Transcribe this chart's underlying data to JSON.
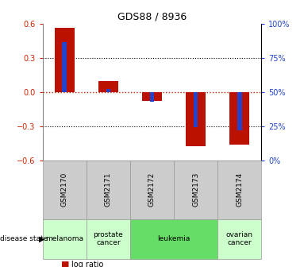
{
  "title": "GDS88 / 8936",
  "samples": [
    "GSM2170",
    "GSM2171",
    "GSM2172",
    "GSM2173",
    "GSM2174"
  ],
  "log_ratio": [
    0.57,
    0.1,
    -0.08,
    -0.48,
    -0.46
  ],
  "percentile_rank": [
    87,
    52,
    43,
    24,
    22
  ],
  "disease_state_spans": [
    {
      "label": "melanoma",
      "start": 0,
      "end": 1,
      "color": "#ccffcc"
    },
    {
      "label": "prostate\ncancer",
      "start": 1,
      "end": 2,
      "color": "#ccffcc"
    },
    {
      "label": "leukemia",
      "start": 2,
      "end": 4,
      "color": "#66dd66"
    },
    {
      "label": "ovarian\ncancer",
      "start": 4,
      "end": 5,
      "color": "#ccffcc"
    }
  ],
  "ylim_left": [
    -0.6,
    0.6
  ],
  "ylim_right": [
    0,
    100
  ],
  "bar_color": "#bb1100",
  "percentile_color": "#2244cc",
  "zero_line_color": "#cc2200",
  "grid_color": "#000000",
  "tick_label_color_left": "#cc2200",
  "tick_label_color_right": "#2244cc",
  "left_ticks": [
    -0.6,
    -0.3,
    0.0,
    0.3,
    0.6
  ],
  "right_ticks": [
    0,
    25,
    50,
    75,
    100
  ],
  "sample_box_color": "#cccccc",
  "sample_box_edge": "#999999",
  "bar_width": 0.45,
  "pct_bar_width": 0.1
}
